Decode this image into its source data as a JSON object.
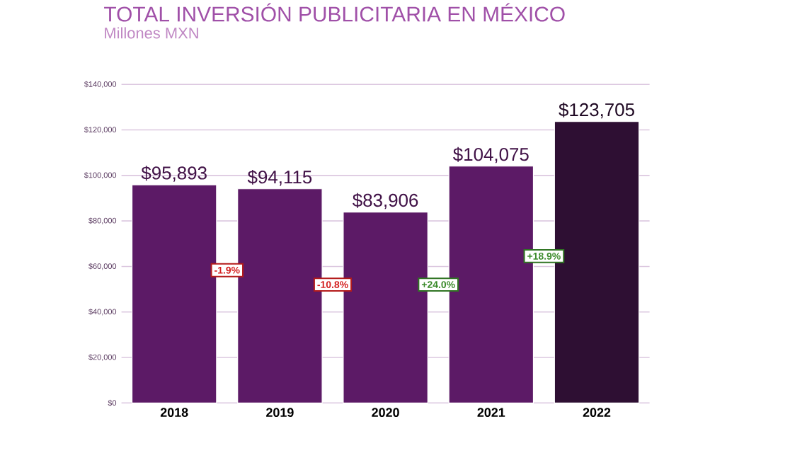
{
  "chart_data": {
    "type": "bar",
    "title": "TOTAL INVERSIÓN PUBLICITARIA EN MÉXICO",
    "subtitle": "Millones MXN",
    "categories": [
      "2018",
      "2019",
      "2020",
      "2021",
      "2022"
    ],
    "values": [
      95893,
      94115,
      83906,
      104075,
      123705
    ],
    "value_labels": [
      "$95,893",
      "$94,115",
      "$83,906",
      "$104,075",
      "$123,705"
    ],
    "colors": [
      "#5c1a66",
      "#5c1a66",
      "#5c1a66",
      "#5c1a66",
      "#2e0f33"
    ],
    "ylim": [
      0,
      140000
    ],
    "yticks": [
      {
        "value": 0,
        "label": "$0"
      },
      {
        "value": 20000,
        "label": "$20,000"
      },
      {
        "value": 40000,
        "label": "$40,000"
      },
      {
        "value": 60000,
        "label": "$60,000"
      },
      {
        "value": 80000,
        "label": "$80,000"
      },
      {
        "value": 100000,
        "label": "$100,000"
      },
      {
        "value": 120000,
        "label": "$120,000"
      },
      {
        "value": 140000,
        "label": "$140,000"
      }
    ],
    "grid": "y",
    "annotations": [
      "-1.9%",
      "-10.8%",
      "+24.0%",
      "+18.9%"
    ]
  }
}
